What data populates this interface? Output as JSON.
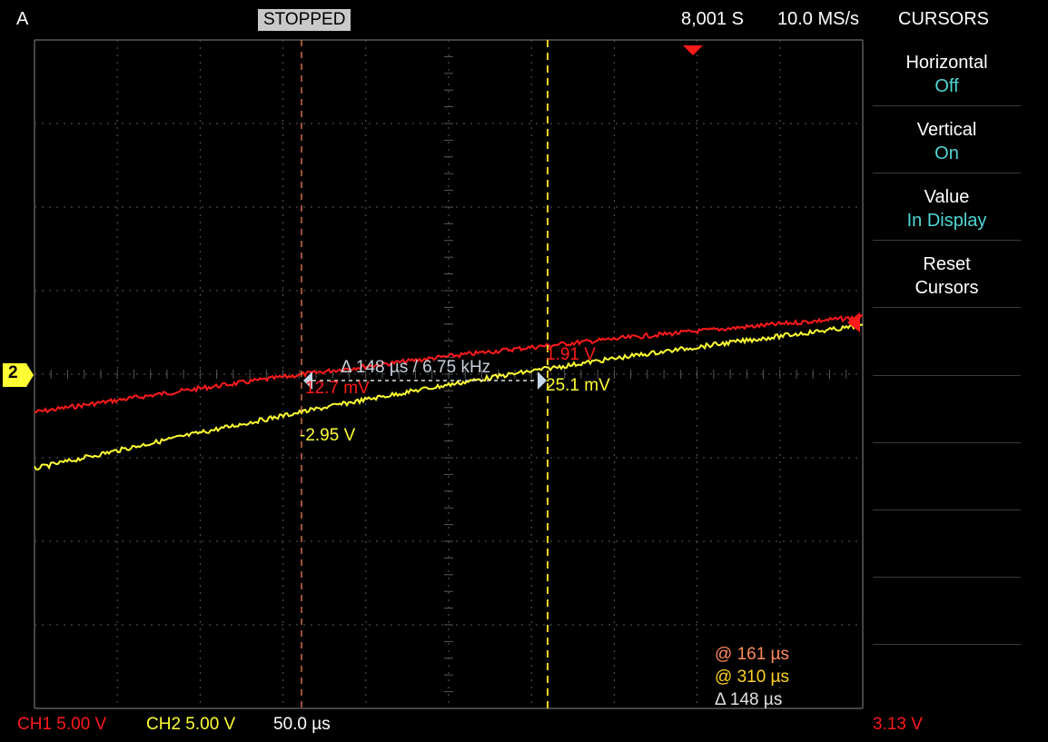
{
  "header": {
    "trigger_mode": "A",
    "status": "STOPPED",
    "record_length": "8,001 S",
    "sample_rate": "10.0 MS/s",
    "menu_title": "CURSORS"
  },
  "side_menu": [
    {
      "label": "Horizontal",
      "value": "Off"
    },
    {
      "label": "Vertical",
      "value": "On"
    },
    {
      "label": "Value",
      "value": "In Display"
    },
    {
      "label": "Reset\nCursors",
      "value": ""
    }
  ],
  "channel_marker": "2",
  "cursors": {
    "delta_label": "Δ 148 µs / 6.75 kHz",
    "c1_ch1_value": "12.7 mV",
    "c1_ch2_value": "-2.95 V",
    "c2_ch1_value": "1.91 V",
    "c2_ch2_value": "25.1 mV",
    "readout_a": "@ 161 µs",
    "readout_b": "@ 310 µs",
    "readout_delta": "Δ 148 µs"
  },
  "footer": {
    "ch1": "CH1 5.00 V",
    "ch2": "CH2 5.00 V",
    "timebase": "50.0 µs",
    "trigger_level": "3.13 V"
  },
  "colors": {
    "ch1": "#ff1a1a",
    "ch2": "#ffff33",
    "cursor_a": "#ff8a5c",
    "cursor_b": "#ffd21f",
    "menu_value": "#4fd6d6",
    "grid": "#5a5a5a"
  }
}
